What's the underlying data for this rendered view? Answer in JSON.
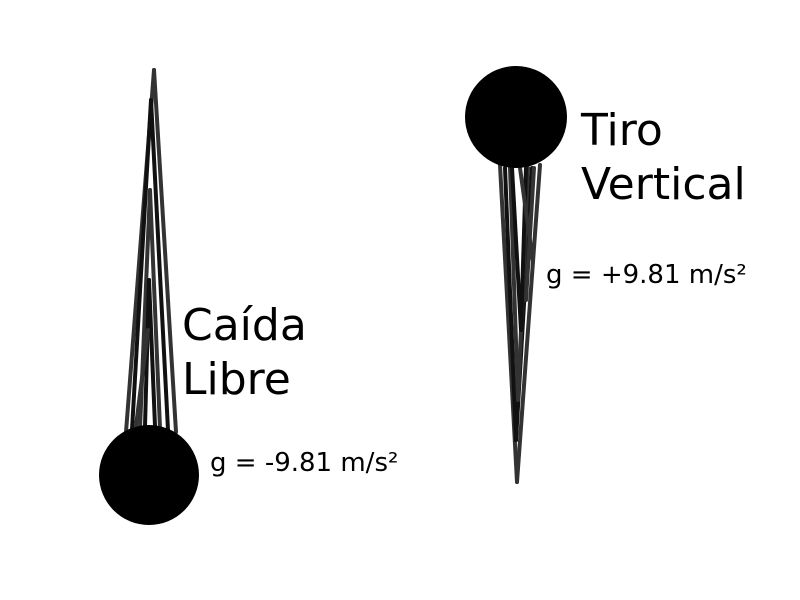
{
  "free_fall": {
    "title_line1": "Caída",
    "title_line2": "Libre",
    "gravity": "g = -9.81 m/s²",
    "ball_color": "#000000",
    "streak_color": "#333333"
  },
  "vertical_throw": {
    "title_line1": "Tiro",
    "title_line2": "Vertical",
    "gravity": "g = +9.81 m/s²",
    "ball_color": "#000000",
    "streak_color": "#333333"
  }
}
